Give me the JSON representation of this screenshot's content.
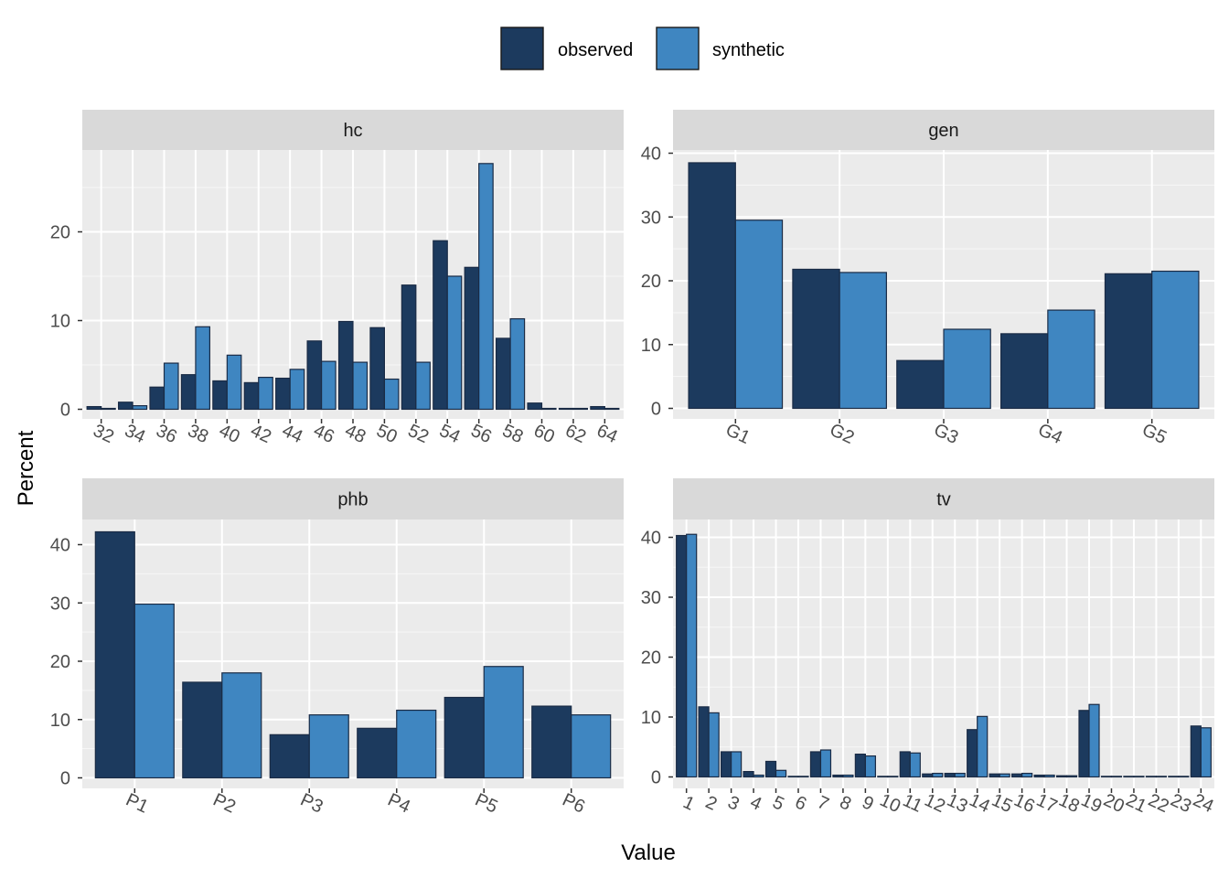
{
  "axes": {
    "xlabel": "Value",
    "ylabel": "Percent"
  },
  "legend": {
    "items": [
      {
        "label": "observed",
        "color": "#1c3a5e"
      },
      {
        "label": "synthetic",
        "color": "#3f86c1"
      }
    ]
  },
  "chart_data": [
    {
      "type": "bar",
      "title": "hc",
      "ylim": [
        0,
        29
      ],
      "yticks": [
        0,
        10,
        20
      ],
      "categories": [
        "32",
        "34",
        "36",
        "38",
        "40",
        "42",
        "44",
        "46",
        "48",
        "50",
        "52",
        "54",
        "56",
        "58",
        "60",
        "62",
        "64"
      ],
      "series": [
        {
          "name": "observed",
          "values": [
            0.3,
            0.8,
            2.5,
            3.9,
            3.2,
            3.0,
            3.5,
            7.7,
            9.9,
            9.2,
            14.0,
            19.0,
            16.0,
            8.0,
            0.7,
            0.1,
            0.3
          ]
        },
        {
          "name": "synthetic",
          "values": [
            0.1,
            0.4,
            5.2,
            9.3,
            6.1,
            3.6,
            4.5,
            5.4,
            5.3,
            3.4,
            5.3,
            15.0,
            27.7,
            10.2,
            0.1,
            0.1,
            0.1
          ]
        }
      ]
    },
    {
      "type": "bar",
      "title": "gen",
      "ylim": [
        0,
        42
      ],
      "yticks": [
        0,
        10,
        20,
        30,
        40
      ],
      "categories": [
        "G1",
        "G2",
        "G3",
        "G4",
        "G5"
      ],
      "series": [
        {
          "name": "observed",
          "values": [
            38.5,
            21.8,
            7.5,
            11.7,
            21.1
          ]
        },
        {
          "name": "synthetic",
          "values": [
            29.5,
            21.3,
            12.4,
            15.4,
            21.5
          ]
        }
      ]
    },
    {
      "type": "bar",
      "title": "phb",
      "ylim": [
        0,
        44
      ],
      "yticks": [
        0,
        10,
        20,
        30,
        40
      ],
      "categories": [
        "P1",
        "P2",
        "P3",
        "P4",
        "P5",
        "P6"
      ],
      "series": [
        {
          "name": "observed",
          "values": [
            42.2,
            16.4,
            7.4,
            8.5,
            13.8,
            12.3
          ]
        },
        {
          "name": "synthetic",
          "values": [
            29.8,
            18.0,
            10.8,
            11.6,
            19.1,
            10.8
          ]
        }
      ]
    },
    {
      "type": "bar",
      "title": "tv",
      "ylim": [
        0,
        42
      ],
      "yticks": [
        0,
        10,
        20,
        30,
        40
      ],
      "categories": [
        "1",
        "2",
        "3",
        "4",
        "5",
        "6",
        "7",
        "8",
        "9",
        "10",
        "11",
        "12",
        "13",
        "14",
        "15",
        "16",
        "17",
        "18",
        "19",
        "20",
        "21",
        "22",
        "23",
        "24"
      ],
      "series": [
        {
          "name": "observed",
          "values": [
            40.3,
            11.7,
            4.2,
            0.9,
            2.6,
            0.1,
            4.2,
            0.3,
            3.8,
            0.1,
            4.2,
            0.5,
            0.6,
            7.9,
            0.5,
            0.5,
            0.3,
            0.2,
            11.1,
            0.1,
            0.1,
            0.1,
            0.1,
            8.5
          ]
        },
        {
          "name": "synthetic",
          "values": [
            40.5,
            10.7,
            4.2,
            0.3,
            1.1,
            0.1,
            4.5,
            0.3,
            3.5,
            0.1,
            4.0,
            0.6,
            0.6,
            10.1,
            0.5,
            0.6,
            0.3,
            0.2,
            12.1,
            0.1,
            0.1,
            0.1,
            0.1,
            8.2
          ]
        }
      ]
    }
  ]
}
